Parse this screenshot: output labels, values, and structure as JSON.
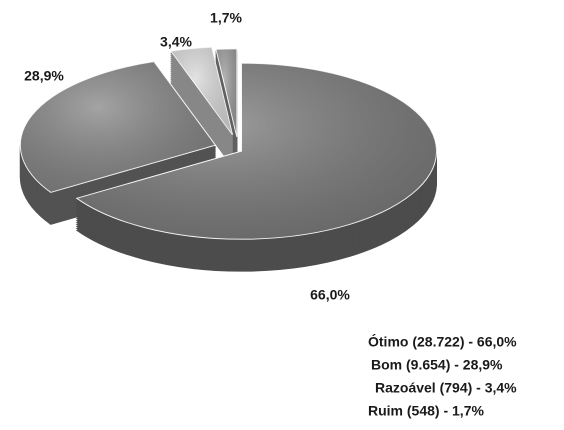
{
  "chart_data": {
    "type": "pie3d",
    "categories": [
      "Ótimo (28.722) - 66,0%",
      "Bom (9.654) - 28,9%",
      "Razoável (794) - 3,4%",
      "Ruim (548) - 1,7%"
    ],
    "values": [
      66.0,
      28.9,
      3.4,
      1.7
    ],
    "value_labels": [
      "66,0%",
      "28,9%",
      "3,4%",
      "1,7%"
    ],
    "colors": [
      "#7b7b7b",
      "#858585",
      "#d9d9d9",
      "#9c9c9c"
    ]
  }
}
